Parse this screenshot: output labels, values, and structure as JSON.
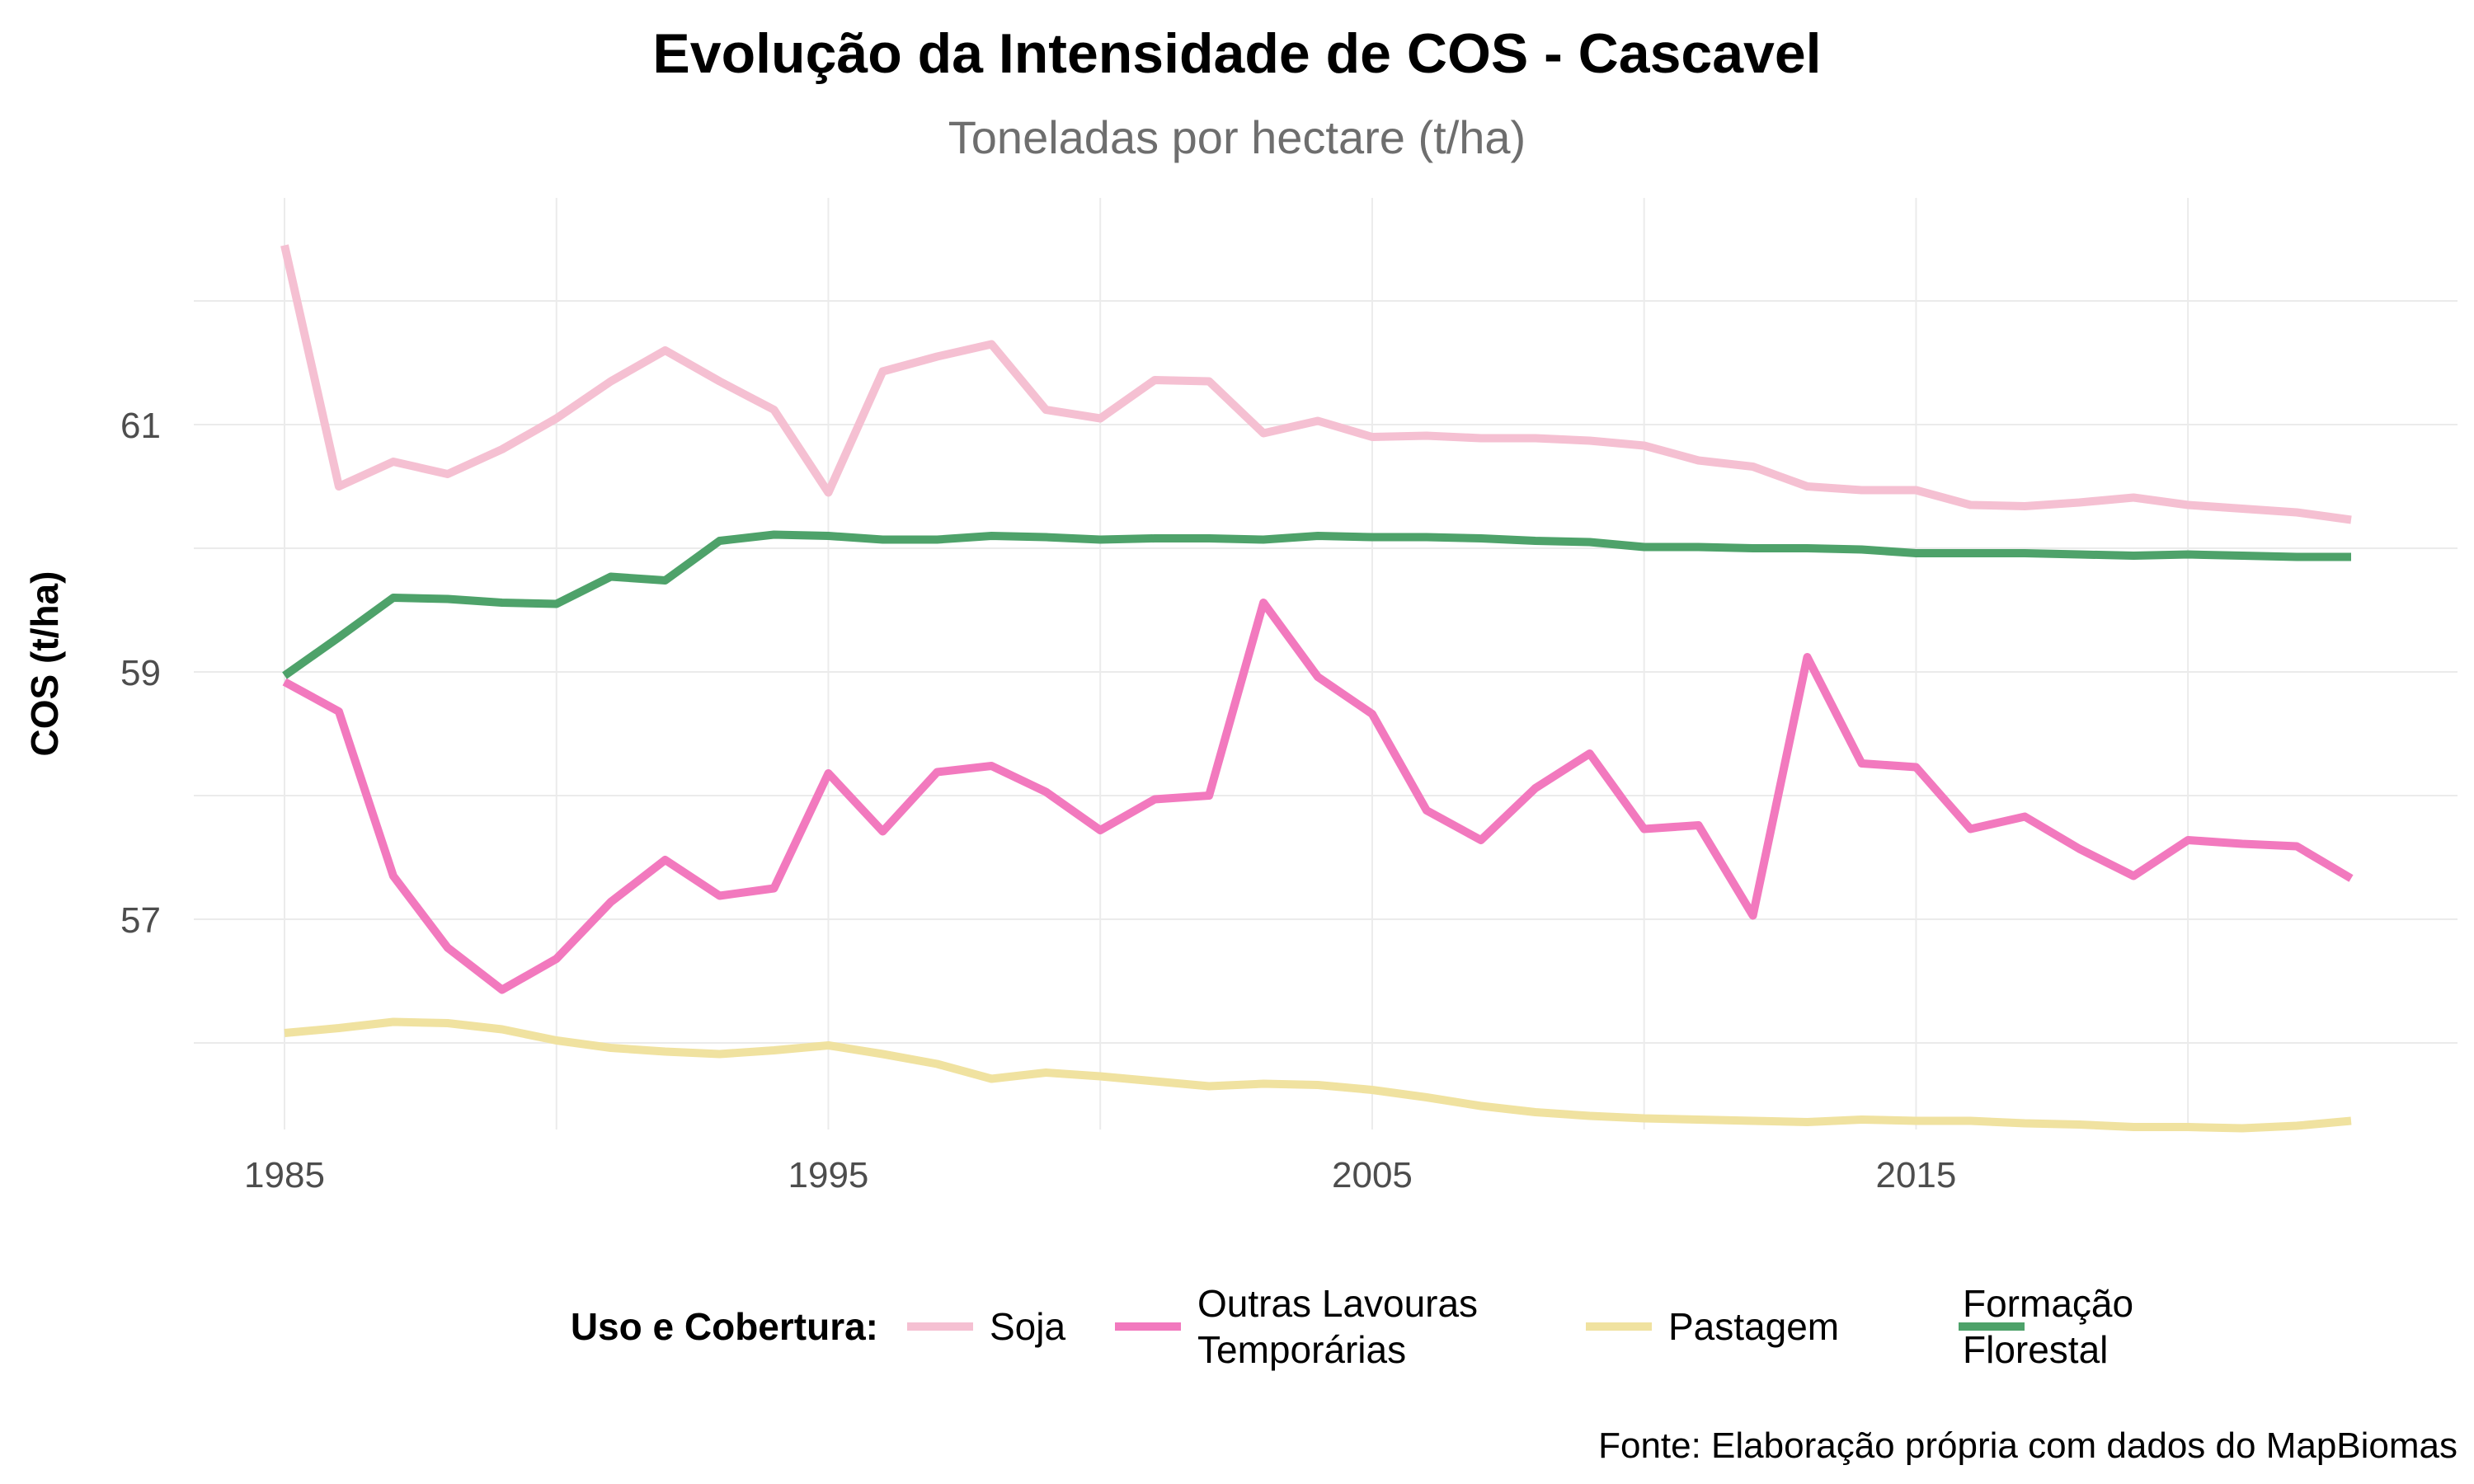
{
  "chart_data": {
    "type": "line",
    "title": "Evolução da Intensidade de COS - Cascavel",
    "subtitle": "Toneladas por hectare (t/ha)",
    "xlabel": "",
    "ylabel": "COS (t/ha)",
    "caption": "Fonte: Elaboração própria com dados do MapBiomas",
    "x": [
      1985,
      1986,
      1987,
      1988,
      1989,
      1990,
      1991,
      1992,
      1993,
      1994,
      1995,
      1996,
      1997,
      1998,
      1999,
      2000,
      2001,
      2002,
      2003,
      2004,
      2005,
      2006,
      2007,
      2008,
      2009,
      2010,
      2011,
      2012,
      2013,
      2014,
      2015,
      2016,
      2017,
      2018,
      2019,
      2020,
      2021,
      2022,
      2023
    ],
    "xlim": [
      1985,
      2023
    ],
    "ylim": [
      55.4,
      62.6
    ],
    "x_ticks": [
      "1985",
      "1995",
      "2005",
      "2015"
    ],
    "x_tick_values": [
      1985,
      1995,
      2005,
      2015
    ],
    "y_ticks": [
      "57",
      "59",
      "61"
    ],
    "y_tick_values": [
      57,
      59,
      61
    ],
    "grid": true,
    "legend": {
      "title": "Uso e Cobertura:",
      "position": "bottom",
      "items": [
        [
          "Soja"
        ],
        [
          "Outras Lavouras",
          "Temporárias"
        ],
        [
          "Pastagem"
        ],
        [
          "Formação",
          "Florestal"
        ]
      ]
    },
    "series": [
      {
        "name": "Soja",
        "color": "#f5c0d2",
        "values": [
          62.45,
          60.5,
          60.7,
          60.6,
          60.8,
          61.05,
          61.35,
          61.6,
          61.35,
          61.12,
          60.45,
          61.43,
          61.55,
          61.65,
          61.12,
          61.05,
          61.36,
          61.35,
          60.93,
          61.03,
          60.9,
          60.91,
          60.89,
          60.89,
          60.87,
          60.83,
          60.71,
          60.66,
          60.5,
          60.47,
          60.47,
          60.35,
          60.34,
          60.37,
          60.41,
          60.35,
          60.32,
          60.29,
          60.23
        ]
      },
      {
        "name": "Outras Lavouras Temporárias",
        "color": "#f279be",
        "values": [
          58.92,
          58.68,
          57.35,
          56.77,
          56.43,
          56.68,
          57.14,
          57.48,
          57.19,
          57.25,
          58.18,
          57.71,
          58.19,
          58.24,
          58.03,
          57.72,
          57.97,
          58.0,
          59.56,
          58.96,
          58.66,
          57.88,
          57.64,
          58.06,
          58.34,
          57.73,
          57.76,
          57.03,
          59.12,
          58.26,
          58.23,
          57.73,
          57.83,
          57.57,
          57.35,
          57.64,
          57.61,
          57.59,
          57.33
        ]
      },
      {
        "name": "Pastagem",
        "color": "#f0e2a0",
        "values": [
          56.08,
          56.12,
          56.17,
          56.16,
          56.11,
          56.02,
          55.96,
          55.93,
          55.91,
          55.94,
          55.98,
          55.91,
          55.83,
          55.71,
          55.76,
          55.73,
          55.69,
          55.65,
          55.67,
          55.66,
          55.62,
          55.56,
          55.49,
          55.44,
          55.41,
          55.39,
          55.38,
          55.37,
          55.36,
          55.38,
          55.37,
          55.37,
          55.35,
          55.34,
          55.32,
          55.32,
          55.31,
          55.33,
          55.37
        ]
      },
      {
        "name": "Formação Florestal",
        "color": "#4ea26a",
        "values": [
          58.97,
          59.28,
          59.6,
          59.59,
          59.56,
          59.55,
          59.77,
          59.74,
          60.06,
          60.11,
          60.1,
          60.07,
          60.07,
          60.1,
          60.09,
          60.07,
          60.08,
          60.08,
          60.07,
          60.1,
          60.09,
          60.09,
          60.08,
          60.06,
          60.05,
          60.01,
          60.01,
          60.0,
          60.0,
          59.99,
          59.96,
          59.96,
          59.96,
          59.95,
          59.94,
          59.95,
          59.94,
          59.93,
          59.93
        ]
      }
    ]
  }
}
